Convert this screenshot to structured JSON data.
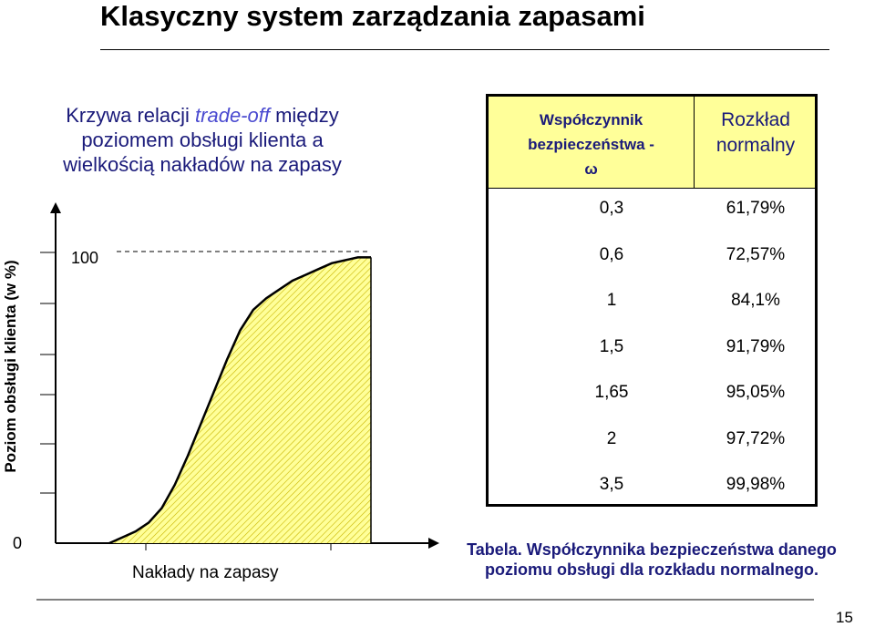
{
  "title": "Klasyczny system zarządzania zapasami",
  "subtitle": {
    "line1_pre": "Krzywa relacji ",
    "line1_em": "trade-off",
    "line1_post": " między",
    "line2": "poziomem obsługi klienta a",
    "line3": "wielkością nakładów na zapasy"
  },
  "chart_data": {
    "type": "area",
    "ylabel": "Poziom obsługi klienta (w %)",
    "xlabel": "Nakłady na zapasy",
    "y_ticks": [
      "100",
      "0"
    ],
    "ylim": [
      0,
      100
    ],
    "x": [
      0,
      0.05,
      0.1,
      0.15,
      0.2,
      0.25,
      0.3,
      0.35,
      0.4,
      0.45,
      0.5,
      0.55,
      0.6,
      0.65,
      0.7,
      0.75,
      0.8,
      0.85,
      0.9,
      0.95,
      1.0
    ],
    "y": [
      0,
      2,
      4,
      7,
      12,
      20,
      30,
      41,
      52,
      63,
      73,
      80,
      84,
      87,
      90,
      92,
      94,
      96,
      97,
      98,
      98
    ],
    "reference_line": 100,
    "fill_color": "#ffff99",
    "hatch_color": "#c8b600"
  },
  "table": {
    "header_col1": [
      "Współczynnik",
      "bezpieczeństwa -",
      "ω"
    ],
    "header_col2": [
      "Rozkład",
      "normalny"
    ],
    "rows": [
      {
        "omega": "0,3",
        "value": "61,79%"
      },
      {
        "omega": "0,6",
        "value": "72,57%"
      },
      {
        "omega": "1",
        "value": "84,1%"
      },
      {
        "omega": "1,5",
        "value": "91,79%"
      },
      {
        "omega": "1,65",
        "value": "95,05%"
      },
      {
        "omega": "2",
        "value": "97,72%"
      },
      {
        "omega": "3,5",
        "value": "99,98%"
      }
    ]
  },
  "caption": {
    "line1": "Tabela. Współczynnika bezpieczeństwa danego",
    "line2": "poziomu obsługi dla rozkładu normalnego."
  },
  "page_number": "15"
}
